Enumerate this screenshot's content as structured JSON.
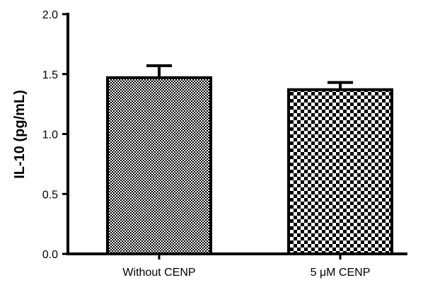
{
  "chart_data": {
    "type": "bar",
    "title": "",
    "xlabel": "",
    "ylabel": "IL-10 (pg/mL)",
    "ylim": [
      0,
      2.0
    ],
    "yticks": [
      "0.0",
      "0.5",
      "1.0",
      "1.5",
      "2.0"
    ],
    "categories": [
      "Without CENP",
      "5 μM CENP"
    ],
    "values": [
      1.47,
      1.37
    ],
    "errors": [
      0.1,
      0.06
    ],
    "bar_patterns": [
      "fine-checker",
      "coarse-checker"
    ],
    "grid": false,
    "legend": "none"
  }
}
